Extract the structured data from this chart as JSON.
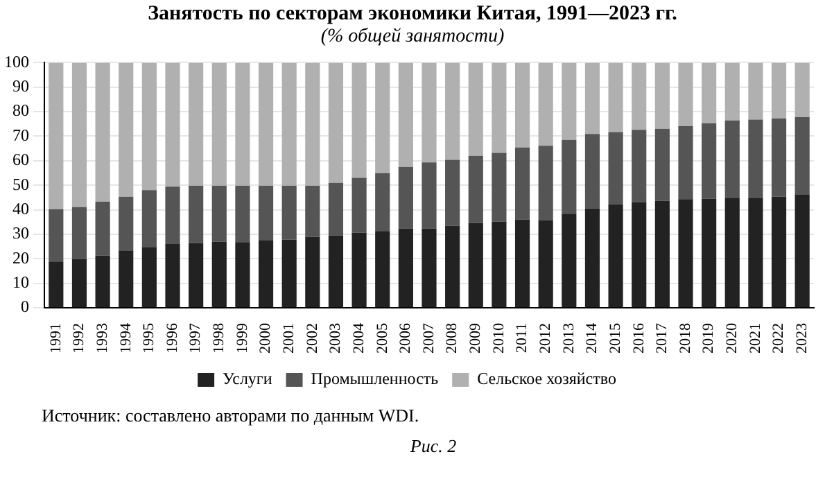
{
  "chart_data": {
    "type": "bar",
    "title": "Занятость по секторам экономики Китая, 1991—2023 гг.",
    "subtitle": "(% общей занятости)",
    "categories": [
      "1991",
      "1992",
      "1993",
      "1994",
      "1995",
      "1996",
      "1997",
      "1998",
      "1999",
      "2000",
      "2001",
      "2002",
      "2003",
      "2004",
      "2005",
      "2006",
      "2007",
      "2008",
      "2009",
      "2010",
      "2011",
      "2012",
      "2013",
      "2014",
      "2015",
      "2016",
      "2017",
      "2018",
      "2019",
      "2020",
      "2021",
      "2022",
      "2023"
    ],
    "series": [
      {
        "name": "Услуги",
        "color": "#222222",
        "values": [
          18.9,
          19.9,
          21.3,
          23.4,
          24.6,
          26.0,
          26.4,
          27.0,
          26.8,
          27.4,
          27.8,
          28.9,
          29.5,
          30.7,
          31.3,
          32.3,
          32.3,
          33.5,
          34.6,
          35.2,
          36.0,
          35.8,
          38.4,
          40.6,
          42.3,
          43.1,
          43.7,
          44.3,
          44.5,
          44.9,
          44.9,
          45.3,
          46.1
        ]
      },
      {
        "name": "Промышленность",
        "color": "#555555",
        "values": [
          21.3,
          21.2,
          22.0,
          21.9,
          23.4,
          23.4,
          23.4,
          22.8,
          23.0,
          22.4,
          22.0,
          20.9,
          21.5,
          22.3,
          23.6,
          25.2,
          27.0,
          26.9,
          27.4,
          28.0,
          29.4,
          30.3,
          30.1,
          30.3,
          29.4,
          29.5,
          29.3,
          29.9,
          30.7,
          31.5,
          31.9,
          31.9,
          31.7
        ]
      },
      {
        "name": "Сельское хозяйство",
        "color": "#b0b0b0",
        "values": [
          59.8,
          58.9,
          56.7,
          54.7,
          52.0,
          50.6,
          50.2,
          50.2,
          50.2,
          50.2,
          50.2,
          50.2,
          49.0,
          47.0,
          45.1,
          42.5,
          40.7,
          39.6,
          38.0,
          36.8,
          34.6,
          33.9,
          31.5,
          29.1,
          28.3,
          27.4,
          27.0,
          25.8,
          24.8,
          23.6,
          23.2,
          22.8,
          22.2
        ]
      }
    ],
    "stacked": true,
    "ylim": [
      0,
      100
    ],
    "yticks": [
      0,
      10,
      20,
      30,
      40,
      50,
      60,
      70,
      80,
      90,
      100
    ],
    "grid": "y",
    "legend": "bottom",
    "annotations": [
      "Источник: составлено авторами по данным WDI.",
      "Рис. 2"
    ]
  }
}
